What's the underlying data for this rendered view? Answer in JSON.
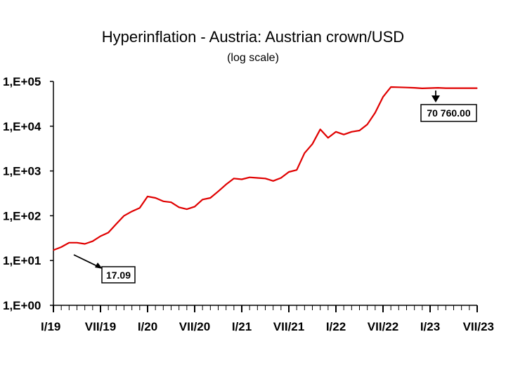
{
  "chart_data": {
    "type": "line",
    "title": "Hyperinflation - Austria: Austrian crown/USD",
    "subtitle": "(log scale)",
    "xlabel": "",
    "ylabel": "",
    "y_scale": "log",
    "ylim": [
      1,
      100000
    ],
    "y_ticks": [
      "1,E+00",
      "1,E+01",
      "1,E+02",
      "1,E+03",
      "1,E+04",
      "1,E+05"
    ],
    "x_ticks": [
      "I/19",
      "VII/19",
      "I/20",
      "VII/20",
      "I/21",
      "VII/21",
      "I/22",
      "VII/22",
      "I/23",
      "VII/23"
    ],
    "grid": false,
    "line_color": "#e00000",
    "series": [
      {
        "x": [
          "1919-01",
          "1919-02",
          "1919-03",
          "1919-04",
          "1919-05",
          "1919-06",
          "1919-07",
          "1919-08",
          "1919-09",
          "1919-10",
          "1919-11",
          "1919-12",
          "1920-01",
          "1920-02",
          "1920-03",
          "1920-04",
          "1920-05",
          "1920-06",
          "1920-07",
          "1920-08",
          "1920-09",
          "1920-10",
          "1920-11",
          "1920-12",
          "1921-01",
          "1921-02",
          "1921-03",
          "1921-04",
          "1921-05",
          "1921-06",
          "1921-07",
          "1921-08",
          "1921-09",
          "1921-10",
          "1921-11",
          "1921-12",
          "1922-01",
          "1922-02",
          "1922-03",
          "1922-04",
          "1922-05",
          "1922-06",
          "1922-07",
          "1922-08",
          "1922-09",
          "1922-10",
          "1922-11",
          "1922-12",
          "1923-01",
          "1923-02",
          "1923-03",
          "1923-04",
          "1923-05",
          "1923-06",
          "1923-07"
        ],
        "values": [
          17.09,
          20,
          25,
          25,
          23.5,
          27,
          35,
          42,
          65,
          100,
          125,
          150,
          270,
          250,
          210,
          200,
          155,
          140,
          160,
          230,
          250,
          350,
          500,
          680,
          650,
          720,
          700,
          680,
          600,
          700,
          950,
          1050,
          2500,
          4000,
          8500,
          5500,
          7500,
          6500,
          7500,
          8000,
          11000,
          20000,
          45000,
          75000,
          74000,
          73000,
          72000,
          70000,
          71000,
          72000,
          70760,
          70760,
          70760,
          70760,
          70760
        ]
      }
    ],
    "annotations": [
      {
        "text": "17.09"
      },
      {
        "text": "70 760.00"
      }
    ]
  }
}
